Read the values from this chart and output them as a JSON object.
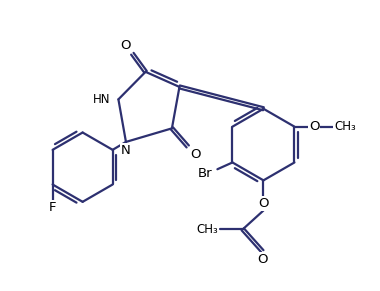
{
  "bg_color": "#ffffff",
  "line_color": "#2d3070",
  "label_color": "#000000",
  "line_width": 1.6,
  "figsize": [
    3.8,
    2.91
  ],
  "dpi": 100,
  "xlim": [
    0,
    10
  ],
  "ylim": [
    0,
    7.65
  ]
}
